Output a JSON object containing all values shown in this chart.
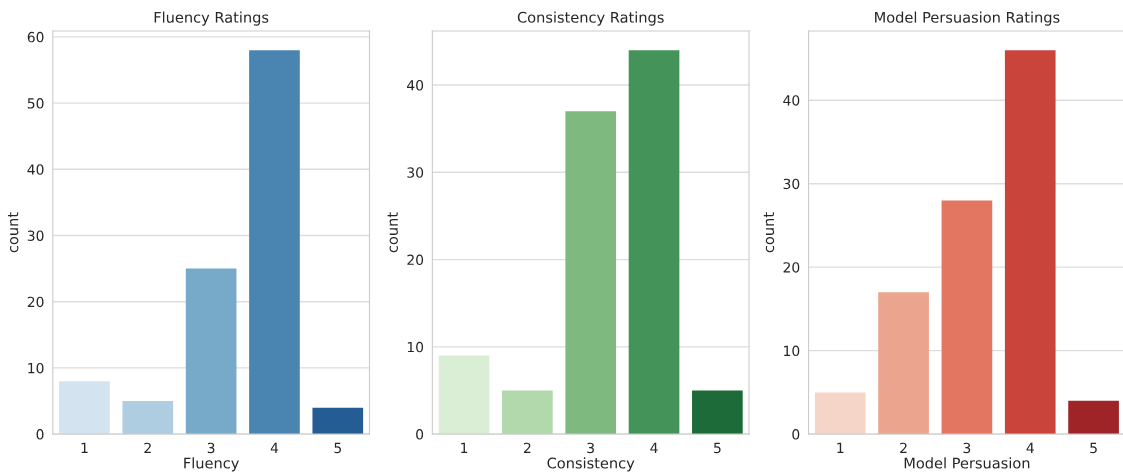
{
  "chart_data": [
    {
      "type": "bar",
      "title": "Fluency Ratings",
      "xlabel": "Fluency",
      "ylabel": "count",
      "categories": [
        "1",
        "2",
        "3",
        "4",
        "5"
      ],
      "values": [
        8,
        5,
        25,
        58,
        4
      ],
      "colors": [
        "#d4e3f0",
        "#aecde1",
        "#77aac9",
        "#4a84b0",
        "#235d93"
      ],
      "ylim": [
        0,
        60.9
      ],
      "yticks": [
        0,
        10,
        20,
        30,
        40,
        50,
        60
      ],
      "grid": "y"
    },
    {
      "type": "bar",
      "title": "Consistency Ratings",
      "xlabel": "Consistency",
      "ylabel": "count",
      "categories": [
        "1",
        "2",
        "3",
        "4",
        "5"
      ],
      "values": [
        9,
        5,
        37,
        44,
        5
      ],
      "colors": [
        "#d9eed5",
        "#b2d9ac",
        "#7eba80",
        "#449358",
        "#1c6b38"
      ],
      "ylim": [
        0,
        46.2
      ],
      "yticks": [
        0,
        10,
        20,
        30,
        40
      ],
      "grid": "y"
    },
    {
      "type": "bar",
      "title": "Model Persuasion Ratings",
      "xlabel": "Model Persuasion",
      "ylabel": "count",
      "categories": [
        "1",
        "2",
        "3",
        "4",
        "5"
      ],
      "values": [
        5,
        17,
        28,
        46,
        4
      ],
      "colors": [
        "#f5d5c7",
        "#eba48d",
        "#e27660",
        "#c9443b",
        "#9e2427"
      ],
      "ylim": [
        0,
        48.3
      ],
      "yticks": [
        0,
        10,
        20,
        30,
        40
      ],
      "grid": "y"
    }
  ]
}
